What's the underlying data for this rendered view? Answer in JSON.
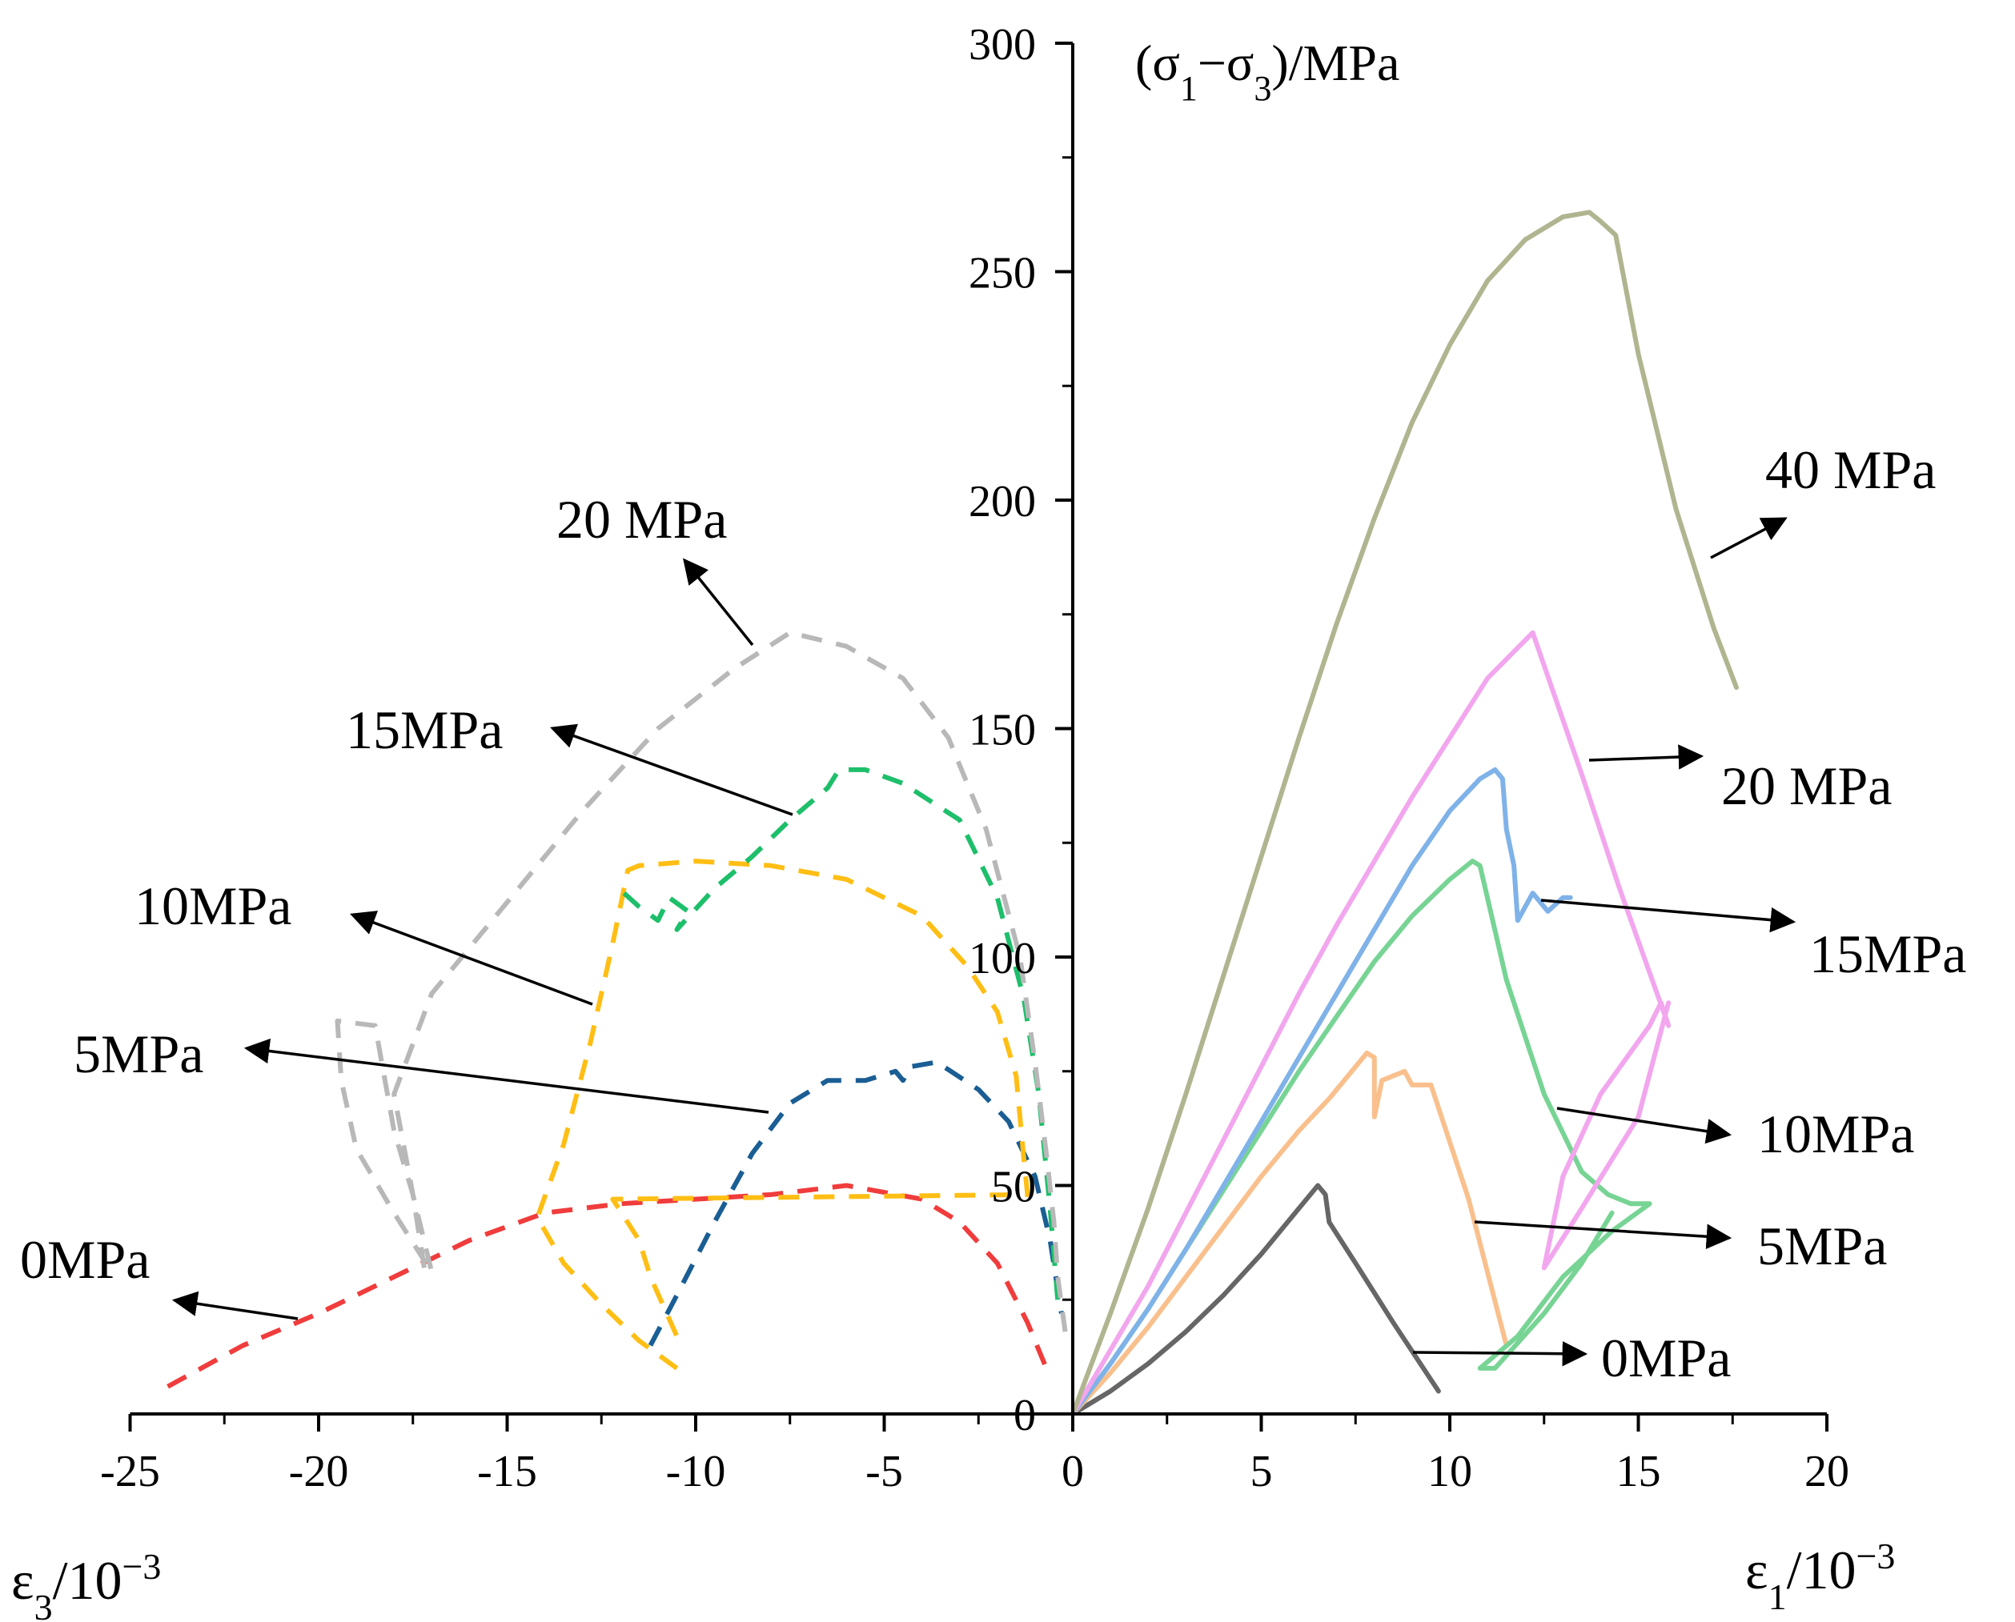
{
  "chart_data": {
    "type": "line",
    "title": "",
    "ylabel": "(σ1−σ3)/MPa",
    "ylabel_parts": {
      "open": "(σ",
      "sub1": "1",
      "minus": "−σ",
      "sub3": "3",
      "close": ")/MPa"
    },
    "xlabel_right": {
      "sym": "ε",
      "sub": "1",
      "base": "/10",
      "sup": "−3"
    },
    "xlabel_left": {
      "sym": "ε",
      "sub": "3",
      "base": "/10",
      "sup": "−3"
    },
    "xlim": [
      -25,
      20
    ],
    "ylim": [
      0,
      300
    ],
    "x_ticks": [
      -25,
      -20,
      -15,
      -10,
      -5,
      0,
      5,
      10,
      15,
      20
    ],
    "x_tick_labels": [
      "-25",
      "-20",
      "-15",
      "-10",
      "-5",
      "0",
      "5",
      "10",
      "15",
      "20"
    ],
    "y_ticks": [
      0,
      50,
      100,
      150,
      200,
      250,
      300
    ],
    "y_tick_labels": [
      "0",
      "50",
      "100",
      "150",
      "200",
      "250",
      "300"
    ],
    "axial_series": [
      {
        "name": "0MPa",
        "color": "#666666",
        "points": [
          [
            0,
            0
          ],
          [
            1,
            5
          ],
          [
            2,
            11
          ],
          [
            3,
            18
          ],
          [
            4,
            26
          ],
          [
            5,
            35
          ],
          [
            6,
            45
          ],
          [
            6.5,
            50
          ],
          [
            6.7,
            48
          ],
          [
            6.8,
            42
          ],
          [
            7.5,
            33
          ],
          [
            8.5,
            20
          ],
          [
            9.7,
            5
          ]
        ]
      },
      {
        "name": "5MPa",
        "color": "#f9c08d",
        "points": [
          [
            0,
            0
          ],
          [
            1,
            9
          ],
          [
            2,
            19
          ],
          [
            3,
            30
          ],
          [
            4,
            41
          ],
          [
            5,
            52
          ],
          [
            6,
            62
          ],
          [
            6.8,
            69
          ],
          [
            7.4,
            75
          ],
          [
            7.8,
            79
          ],
          [
            8.0,
            78
          ],
          [
            8.0,
            65
          ],
          [
            8.2,
            73
          ],
          [
            8.8,
            75
          ],
          [
            9.0,
            72
          ],
          [
            9.5,
            72
          ],
          [
            10.5,
            47
          ],
          [
            11.5,
            15
          ]
        ]
      },
      {
        "name": "10MPa",
        "color": "#77d494",
        "points": [
          [
            0,
            0
          ],
          [
            1,
            11
          ],
          [
            2,
            23
          ],
          [
            3,
            36
          ],
          [
            4,
            49
          ],
          [
            5,
            62
          ],
          [
            6,
            75
          ],
          [
            7,
            87
          ],
          [
            8,
            99
          ],
          [
            9,
            109
          ],
          [
            10,
            117
          ],
          [
            10.6,
            121
          ],
          [
            10.8,
            120
          ],
          [
            11.5,
            95
          ],
          [
            12.5,
            70
          ],
          [
            13.5,
            53
          ],
          [
            14.2,
            48
          ],
          [
            14.8,
            46
          ],
          [
            15.3,
            46
          ],
          [
            14.3,
            40
          ],
          [
            13,
            30
          ],
          [
            11.8,
            17
          ],
          [
            10.8,
            10
          ],
          [
            11.2,
            10
          ],
          [
            12.5,
            22
          ],
          [
            13.5,
            33
          ],
          [
            14.3,
            44
          ]
        ]
      },
      {
        "name": "15MPa",
        "color": "#7fb2e8",
        "points": [
          [
            0,
            0
          ],
          [
            1,
            11
          ],
          [
            2,
            23
          ],
          [
            3,
            36
          ],
          [
            4,
            50
          ],
          [
            5,
            64
          ],
          [
            6,
            78
          ],
          [
            7,
            92
          ],
          [
            8,
            106
          ],
          [
            9,
            120
          ],
          [
            10,
            132
          ],
          [
            10.8,
            139
          ],
          [
            11.2,
            141
          ],
          [
            11.4,
            139
          ],
          [
            11.5,
            128
          ],
          [
            11.7,
            120
          ],
          [
            11.8,
            108
          ],
          [
            12.0,
            111
          ],
          [
            12.2,
            114
          ],
          [
            12.6,
            110
          ],
          [
            13.0,
            113
          ],
          [
            13.2,
            113
          ]
        ]
      },
      {
        "name": "20MPa",
        "color": "#f2a6ee",
        "points": [
          [
            0,
            0
          ],
          [
            1,
            14
          ],
          [
            2,
            28
          ],
          [
            3,
            44
          ],
          [
            4,
            60
          ],
          [
            5,
            76
          ],
          [
            6,
            92
          ],
          [
            7,
            107
          ],
          [
            8,
            121
          ],
          [
            9,
            135
          ],
          [
            10,
            148
          ],
          [
            11,
            161
          ],
          [
            12.2,
            171
          ],
          [
            13.5,
            140
          ],
          [
            14.5,
            115
          ],
          [
            15.8,
            85
          ],
          [
            15.6,
            90
          ],
          [
            15.3,
            85
          ],
          [
            14,
            70
          ],
          [
            13,
            52
          ],
          [
            12.5,
            32
          ],
          [
            13.5,
            45
          ],
          [
            15,
            65
          ],
          [
            15.8,
            90
          ]
        ]
      },
      {
        "name": "40MPa",
        "color": "#b0b590",
        "points": [
          [
            0,
            0
          ],
          [
            1,
            22
          ],
          [
            2,
            45
          ],
          [
            3,
            70
          ],
          [
            4,
            96
          ],
          [
            5,
            122
          ],
          [
            6,
            148
          ],
          [
            7,
            173
          ],
          [
            8,
            196
          ],
          [
            9,
            217
          ],
          [
            10,
            234
          ],
          [
            11,
            248
          ],
          [
            12,
            257
          ],
          [
            13,
            262
          ],
          [
            13.7,
            263
          ],
          [
            14,
            261
          ],
          [
            14.4,
            258
          ],
          [
            15,
            232
          ],
          [
            16,
            198
          ],
          [
            17,
            172
          ],
          [
            17.6,
            159
          ]
        ]
      }
    ],
    "lateral_series": [
      {
        "name": "0MPa",
        "color": "#f03c3c",
        "points": [
          [
            -24,
            6
          ],
          [
            -22,
            15
          ],
          [
            -20,
            22
          ],
          [
            -18,
            30
          ],
          [
            -16,
            38
          ],
          [
            -14,
            44
          ],
          [
            -12,
            46
          ],
          [
            -10,
            47
          ],
          [
            -8,
            48
          ],
          [
            -6,
            50
          ],
          [
            -4,
            47
          ],
          [
            -3,
            42
          ],
          [
            -2,
            33
          ],
          [
            -1.2,
            20
          ],
          [
            -0.6,
            8
          ]
        ]
      },
      {
        "name": "5MPa",
        "color": "#1a5e94",
        "points": [
          [
            -11.2,
            15
          ],
          [
            -10.5,
            26
          ],
          [
            -9.5,
            42
          ],
          [
            -8.5,
            57
          ],
          [
            -7.5,
            68
          ],
          [
            -6.5,
            73
          ],
          [
            -5.5,
            73
          ],
          [
            -4.7,
            75
          ],
          [
            -4.5,
            73
          ],
          [
            -4.3,
            76
          ],
          [
            -3.6,
            77
          ],
          [
            -2.5,
            71
          ],
          [
            -1.7,
            64
          ],
          [
            -1.0,
            52
          ],
          [
            -0.6,
            38
          ],
          [
            -0.3,
            22
          ]
        ]
      },
      {
        "name": "10MPa",
        "color": "#ffbe14",
        "points": [
          [
            -10.5,
            10
          ],
          [
            -11.5,
            16
          ],
          [
            -12.5,
            24
          ],
          [
            -13.5,
            33
          ],
          [
            -14.2,
            43
          ],
          [
            -13.5,
            59
          ],
          [
            -12.8,
            81
          ],
          [
            -12.2,
            103
          ],
          [
            -11.8,
            119
          ],
          [
            -11.5,
            120
          ],
          [
            -10,
            121
          ],
          [
            -8,
            120
          ],
          [
            -6,
            117
          ],
          [
            -4,
            109
          ],
          [
            -2.8,
            98
          ],
          [
            -2,
            88
          ],
          [
            -1.5,
            74
          ],
          [
            -1.3,
            56
          ],
          [
            -1.2,
            48
          ],
          [
            -12.2,
            47
          ],
          [
            -11.5,
            38
          ],
          [
            -11.2,
            30
          ],
          [
            -10.5,
            17
          ]
        ]
      },
      {
        "name": "15MPa",
        "color": "#1dbf6a",
        "points": [
          [
            -11.9,
            114
          ],
          [
            -11.5,
            111
          ],
          [
            -11.0,
            108
          ],
          [
            -10.7,
            113
          ],
          [
            -10.2,
            110
          ],
          [
            -10.5,
            106
          ],
          [
            -9.5,
            115
          ],
          [
            -8.5,
            122
          ],
          [
            -7.5,
            130
          ],
          [
            -6.5,
            137
          ],
          [
            -6.2,
            141
          ],
          [
            -5.5,
            141
          ],
          [
            -4.5,
            138
          ],
          [
            -3,
            130
          ],
          [
            -2,
            113
          ],
          [
            -1.3,
            91
          ],
          [
            -0.9,
            70
          ],
          [
            -0.6,
            45
          ],
          [
            -0.4,
            25
          ]
        ]
      },
      {
        "name": "20MPa",
        "color": "#b8b8b8",
        "points": [
          [
            -17.2,
            32
          ],
          [
            -17.5,
            48
          ],
          [
            -18,
            62
          ],
          [
            -18.5,
            85
          ],
          [
            -19.5,
            86
          ],
          [
            -19.4,
            73
          ],
          [
            -19,
            58
          ],
          [
            -18,
            44
          ],
          [
            -17,
            31
          ],
          [
            -17.5,
            48
          ],
          [
            -18,
            70
          ],
          [
            -17,
            92
          ],
          [
            -15,
            112
          ],
          [
            -13,
            132
          ],
          [
            -11,
            150
          ],
          [
            -9,
            163
          ],
          [
            -7.5,
            171
          ],
          [
            -6,
            168
          ],
          [
            -4.5,
            161
          ],
          [
            -3.3,
            148
          ],
          [
            -2.3,
            128
          ],
          [
            -1.4,
            100
          ],
          [
            -1,
            77
          ],
          [
            -0.7,
            57
          ],
          [
            -0.5,
            42
          ],
          [
            -0.4,
            30
          ],
          [
            -0.2,
            18
          ]
        ]
      }
    ],
    "right_labels": [
      {
        "text": "40 MPa"
      },
      {
        "text": "20 MPa"
      },
      {
        "text": "15MPa"
      },
      {
        "text": "10MPa"
      },
      {
        "text": "5MPa"
      },
      {
        "text": "0MPa"
      }
    ],
    "left_labels": [
      {
        "text": "20 MPa"
      },
      {
        "text": "15MPa"
      },
      {
        "text": "10MPa"
      },
      {
        "text": "5MPa"
      },
      {
        "text": "0MPa"
      }
    ]
  }
}
